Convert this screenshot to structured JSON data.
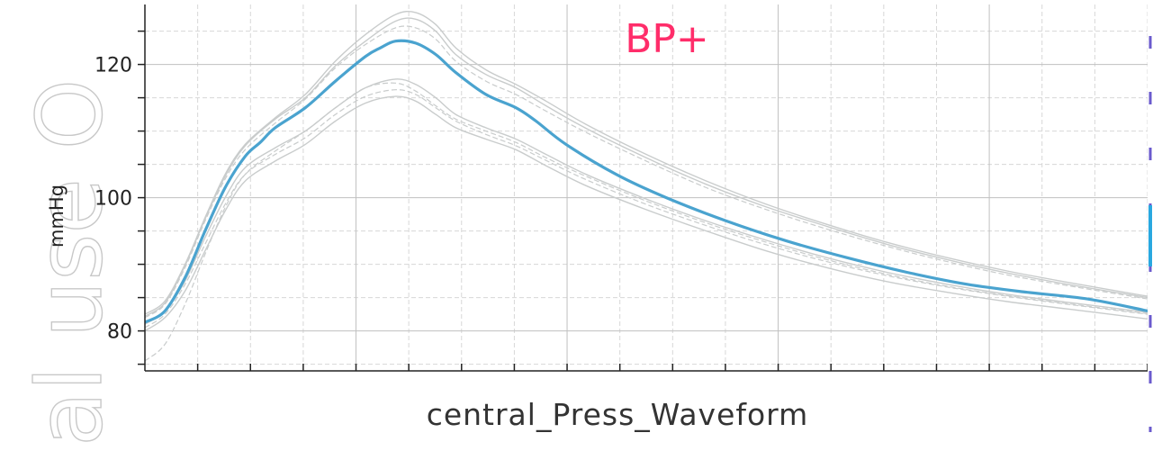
{
  "chart_data": {
    "type": "line",
    "title": "",
    "brand_label": "BP+",
    "ylabel": "mmHg",
    "xlabel": "central_Press_Waveform",
    "watermark": "al use O",
    "ylim": [
      74,
      129
    ],
    "xlim": [
      0,
      1
    ],
    "y_ticks": [
      80,
      100,
      120
    ],
    "grid": "on",
    "colors": {
      "average": "#4aa3cf",
      "beats": "#c9cccc",
      "brand": "#ff2d6a",
      "grid_major": "#c0c0c0",
      "grid_minor": "#d7d7d7"
    },
    "series": [
      {
        "role": "average",
        "x": [
          0.0,
          0.02,
          0.04,
          0.06,
          0.08,
          0.1,
          0.115,
          0.13,
          0.16,
          0.19,
          0.22,
          0.235,
          0.25,
          0.27,
          0.29,
          0.31,
          0.34,
          0.37,
          0.39,
          0.42,
          0.47,
          0.52,
          0.58,
          0.64,
          0.7,
          0.76,
          0.82,
          0.88,
          0.94,
          1.0
        ],
        "y": [
          81.3,
          83.0,
          88.0,
          95.0,
          101.5,
          106.2,
          108.3,
          110.5,
          113.5,
          117.5,
          121.2,
          122.5,
          123.5,
          123.2,
          121.5,
          118.8,
          115.5,
          113.5,
          111.5,
          108.0,
          103.5,
          100.0,
          96.5,
          93.5,
          91.0,
          88.8,
          87.0,
          85.8,
          84.8,
          83.0
        ]
      },
      {
        "role": "beat",
        "x": [
          0.0,
          0.02,
          0.04,
          0.06,
          0.08,
          0.1,
          0.13,
          0.16,
          0.19,
          0.22,
          0.25,
          0.27,
          0.29,
          0.31,
          0.34,
          0.37,
          0.4,
          0.44,
          0.5,
          0.56,
          0.62,
          0.68,
          0.74,
          0.8,
          0.86,
          0.92,
          1.0
        ],
        "y": [
          82.5,
          84.5,
          90.0,
          97.0,
          103.5,
          108.0,
          112.0,
          115.5,
          120.5,
          124.5,
          127.5,
          127.8,
          126.0,
          122.5,
          119.2,
          117.0,
          114.5,
          111.0,
          106.5,
          102.5,
          99.0,
          96.0,
          93.3,
          91.0,
          89.0,
          87.3,
          85.2
        ]
      },
      {
        "role": "beat",
        "x": [
          0.0,
          0.02,
          0.04,
          0.06,
          0.08,
          0.1,
          0.13,
          0.16,
          0.19,
          0.22,
          0.25,
          0.27,
          0.29,
          0.31,
          0.34,
          0.37,
          0.4,
          0.44,
          0.5,
          0.56,
          0.62,
          0.68,
          0.74,
          0.8,
          0.86,
          0.92,
          1.0
        ],
        "y": [
          82.0,
          84.0,
          89.5,
          96.5,
          102.8,
          107.2,
          111.2,
          114.8,
          119.5,
          123.0,
          125.5,
          125.5,
          123.8,
          120.5,
          117.5,
          115.5,
          113.0,
          109.8,
          105.5,
          101.5,
          98.2,
          95.3,
          92.7,
          90.4,
          88.4,
          86.8,
          84.8
        ]
      },
      {
        "role": "beat",
        "x": [
          0.0,
          0.02,
          0.04,
          0.06,
          0.08,
          0.1,
          0.13,
          0.16,
          0.19,
          0.22,
          0.25,
          0.27,
          0.29,
          0.31,
          0.34,
          0.37,
          0.4,
          0.44,
          0.5,
          0.56,
          0.62,
          0.68,
          0.74,
          0.8,
          0.86,
          0.92,
          1.0
        ],
        "y": [
          81.0,
          83.0,
          87.5,
          94.0,
          100.0,
          104.5,
          107.5,
          110.0,
          113.5,
          116.5,
          117.8,
          117.0,
          115.0,
          112.5,
          110.5,
          108.8,
          106.5,
          103.5,
          99.8,
          96.5,
          93.6,
          91.0,
          88.8,
          87.0,
          85.5,
          84.3,
          82.8
        ]
      },
      {
        "role": "beat",
        "x": [
          0.0,
          0.02,
          0.04,
          0.06,
          0.08,
          0.1,
          0.13,
          0.16,
          0.19,
          0.22,
          0.25,
          0.27,
          0.29,
          0.31,
          0.34,
          0.37,
          0.4,
          0.44,
          0.5,
          0.56,
          0.62,
          0.68,
          0.74,
          0.8,
          0.86,
          0.92,
          1.0
        ],
        "y": [
          80.5,
          82.5,
          87.0,
          93.0,
          99.0,
          103.5,
          106.5,
          109.0,
          112.5,
          115.2,
          116.2,
          115.5,
          113.5,
          111.5,
          109.5,
          107.8,
          105.6,
          102.7,
          99.0,
          95.8,
          92.9,
          90.4,
          88.3,
          86.6,
          85.2,
          84.0,
          82.5
        ]
      },
      {
        "role": "beat",
        "x": [
          0.0,
          0.02,
          0.04,
          0.06,
          0.08,
          0.1,
          0.13,
          0.16,
          0.19,
          0.22,
          0.25,
          0.27,
          0.29,
          0.31,
          0.34,
          0.37,
          0.4,
          0.44,
          0.5,
          0.56,
          0.62,
          0.68,
          0.74,
          0.8,
          0.86,
          0.92,
          1.0
        ],
        "y": [
          80.0,
          82.0,
          86.0,
          92.0,
          98.0,
          102.5,
          105.5,
          108.0,
          111.5,
          114.2,
          115.2,
          114.5,
          112.5,
          110.5,
          108.8,
          107.2,
          104.8,
          101.8,
          98.2,
          95.0,
          92.0,
          89.5,
          87.4,
          85.8,
          84.4,
          83.3,
          81.8
        ]
      },
      {
        "role": "beat",
        "x": [
          0.0,
          0.02,
          0.04,
          0.06,
          0.08,
          0.1,
          0.13,
          0.16,
          0.19,
          0.22,
          0.25,
          0.27,
          0.29,
          0.31,
          0.34,
          0.37,
          0.4,
          0.44,
          0.5,
          0.56,
          0.62,
          0.68,
          0.74,
          0.8,
          0.86,
          0.92,
          1.0
        ],
        "y": [
          75.5,
          78.0,
          84.0,
          91.5,
          98.5,
          103.5,
          107.0,
          110.0,
          113.5,
          116.5,
          117.2,
          116.0,
          113.8,
          111.8,
          110.0,
          108.3,
          106.0,
          103.2,
          99.5,
          96.2,
          93.3,
          90.7,
          88.5,
          86.7,
          85.3,
          84.1,
          82.6
        ]
      },
      {
        "role": "beat",
        "x": [
          0.0,
          0.02,
          0.04,
          0.06,
          0.08,
          0.1,
          0.13,
          0.16,
          0.19,
          0.22,
          0.25,
          0.27,
          0.29,
          0.31,
          0.34,
          0.37,
          0.4,
          0.44,
          0.5,
          0.56,
          0.62,
          0.68,
          0.74,
          0.8,
          0.86,
          0.92,
          1.0
        ],
        "y": [
          82.2,
          84.2,
          89.8,
          96.8,
          103.2,
          107.8,
          111.8,
          115.0,
          119.8,
          123.5,
          126.5,
          126.8,
          125.0,
          121.5,
          118.5,
          116.5,
          113.8,
          110.4,
          106.0,
          102.0,
          98.6,
          95.7,
          93.0,
          90.7,
          88.7,
          87.0,
          85.0
        ]
      }
    ]
  }
}
